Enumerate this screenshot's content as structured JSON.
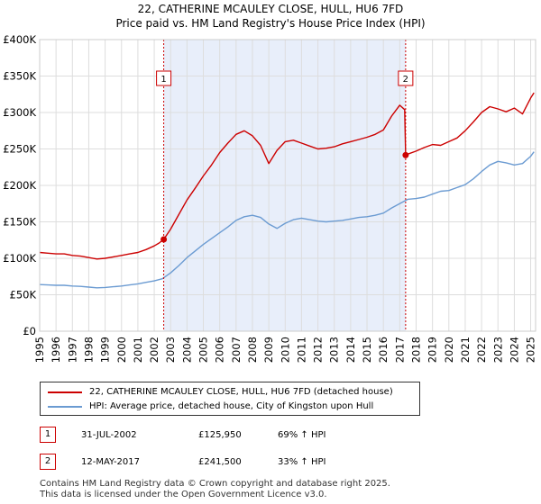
{
  "chart_data": {
    "type": "line",
    "title": "22, CATHERINE MCAULEY CLOSE, HULL, HU6 7FD",
    "subtitle": "Price paid vs. HM Land Registry's House Price Index (HPI)",
    "ylim": [
      0,
      400000
    ],
    "xlim": [
      1995,
      2025.3
    ],
    "y_ticks": [
      0,
      50000,
      100000,
      150000,
      200000,
      250000,
      300000,
      350000,
      400000
    ],
    "y_tick_labels": [
      "£0",
      "£50K",
      "£100K",
      "£150K",
      "£200K",
      "£250K",
      "£300K",
      "£350K",
      "£400K"
    ],
    "x_ticks": [
      1995,
      1996,
      1997,
      1998,
      1999,
      2000,
      2001,
      2002,
      2003,
      2004,
      2005,
      2006,
      2007,
      2008,
      2009,
      2010,
      2011,
      2012,
      2013,
      2014,
      2015,
      2016,
      2017,
      2018,
      2019,
      2020,
      2021,
      2022,
      2023,
      2024,
      2025
    ],
    "x_tick_labels": [
      "1995",
      "1996",
      "1997",
      "1998",
      "1999",
      "2000",
      "2001",
      "2002",
      "2003",
      "2004",
      "2005",
      "2006",
      "2007",
      "2008",
      "2009",
      "2010",
      "2011",
      "2012",
      "2013",
      "2014",
      "2015",
      "2016",
      "2017",
      "2018",
      "2019",
      "2020",
      "2021",
      "2022",
      "2023",
      "2024",
      "2025"
    ],
    "shaded_period": [
      2002.58,
      2017.36
    ],
    "series": [
      {
        "name": "22, CATHERINE MCAULEY CLOSE, HULL, HU6 7FD (detached house)",
        "color": "#cc0000",
        "x": [
          1995,
          1995.5,
          1996,
          1996.5,
          1997,
          1997.5,
          1998,
          1998.5,
          1999,
          1999.5,
          2000,
          2000.5,
          2001,
          2001.5,
          2002,
          2002.3,
          2002.58,
          2003,
          2003.5,
          2004,
          2004.5,
          2005,
          2005.5,
          2006,
          2006.5,
          2007,
          2007.5,
          2008,
          2008.5,
          2009,
          2009.5,
          2010,
          2010.5,
          2011,
          2011.5,
          2012,
          2012.5,
          2013,
          2013.5,
          2014,
          2014.5,
          2015,
          2015.5,
          2016,
          2016.5,
          2017,
          2017.3,
          2017.36,
          2017.5,
          2018,
          2018.5,
          2019,
          2019.5,
          2020,
          2020.5,
          2021,
          2021.5,
          2022,
          2022.5,
          2023,
          2023.5,
          2024,
          2024.5,
          2025,
          2025.2
        ],
        "values": [
          108000,
          107000,
          106000,
          106000,
          104000,
          103000,
          101000,
          99000,
          100000,
          102000,
          104000,
          106000,
          108000,
          112000,
          117000,
          121000,
          125950,
          140000,
          160000,
          180000,
          196000,
          213000,
          228000,
          245000,
          258000,
          270000,
          275000,
          268000,
          255000,
          230000,
          248000,
          260000,
          262000,
          258000,
          254000,
          250000,
          251000,
          253000,
          257000,
          260000,
          263000,
          266000,
          270000,
          276000,
          295000,
          310000,
          304000,
          241500,
          243000,
          247000,
          252000,
          256000,
          255000,
          260000,
          265000,
          275000,
          287000,
          300000,
          308000,
          305000,
          301000,
          306000,
          298000,
          320000,
          327000
        ]
      },
      {
        "name": "HPI: Average price, detached house, City of Kingston upon Hull",
        "color": "#6b9bd2",
        "x": [
          1995,
          1995.5,
          1996,
          1996.5,
          1997,
          1997.5,
          1998,
          1998.5,
          1999,
          1999.5,
          2000,
          2000.5,
          2001,
          2001.5,
          2002,
          2002.5,
          2003,
          2003.5,
          2004,
          2004.5,
          2005,
          2005.5,
          2006,
          2006.5,
          2007,
          2007.5,
          2008,
          2008.5,
          2009,
          2009.5,
          2010,
          2010.5,
          2011,
          2011.5,
          2012,
          2012.5,
          2013,
          2013.5,
          2014,
          2014.5,
          2015,
          2015.5,
          2016,
          2016.5,
          2017,
          2017.5,
          2018,
          2018.5,
          2019,
          2019.5,
          2020,
          2020.5,
          2021,
          2021.5,
          2022,
          2022.5,
          2023,
          2023.5,
          2024,
          2024.5,
          2025,
          2025.2
        ],
        "values": [
          64000,
          63500,
          63000,
          63000,
          62000,
          61500,
          60500,
          59500,
          60000,
          61000,
          62000,
          63500,
          65000,
          67000,
          69000,
          72000,
          80000,
          90000,
          101000,
          110000,
          119000,
          127000,
          135000,
          143000,
          152000,
          157000,
          159000,
          156000,
          147000,
          141000,
          148000,
          153000,
          155000,
          153000,
          151000,
          150000,
          151000,
          152000,
          154000,
          156000,
          157000,
          159000,
          162000,
          169000,
          175000,
          181000,
          182000,
          184000,
          188000,
          192000,
          193000,
          197000,
          201000,
          209000,
          219000,
          228000,
          233000,
          231000,
          228000,
          230000,
          240000,
          246000
        ]
      }
    ],
    "sale_markers": [
      {
        "label": "1",
        "x": 2002.58,
        "value": 125950
      },
      {
        "label": "2",
        "x": 2017.36,
        "value": 241500
      }
    ]
  },
  "legend": {
    "property_label": "22, CATHERINE MCAULEY CLOSE, HULL, HU6 7FD (detached house)",
    "hpi_label": "HPI: Average price, detached house, City of Kingston upon Hull"
  },
  "sales": [
    {
      "num": "1",
      "date": "31-JUL-2002",
      "price": "£125,950",
      "hpi": "69% ↑ HPI"
    },
    {
      "num": "2",
      "date": "12-MAY-2017",
      "price": "£241,500",
      "hpi": "33% ↑ HPI"
    }
  ],
  "footer": {
    "line1": "Contains HM Land Registry data © Crown copyright and database right 2025.",
    "line2": "This data is licensed under the Open Government Licence v3.0."
  },
  "colors": {
    "property": "#cc0000",
    "hpi": "#6b9bd2",
    "shade": "#e8eefa",
    "grid": "#dddddd"
  }
}
